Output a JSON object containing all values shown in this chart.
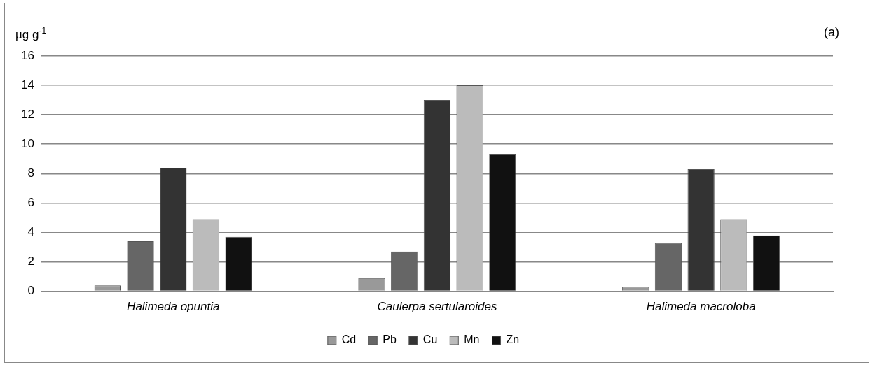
{
  "chart_data": {
    "type": "bar",
    "ylabel": "µg g$^{-1}$",
    "annotations": [
      "(a)"
    ],
    "categories": [
      "Halimeda opuntia",
      "Caulerpa sertularoides",
      "Halimeda macroloba"
    ],
    "series": [
      {
        "name": "Cd",
        "color": "#999999",
        "values": [
          0.4,
          0.9,
          0.3
        ]
      },
      {
        "name": "Pb",
        "color": "#666666",
        "values": [
          3.4,
          2.7,
          3.3
        ]
      },
      {
        "name": "Cu",
        "color": "#333333",
        "values": [
          8.4,
          13.0,
          8.3
        ]
      },
      {
        "name": "Mn",
        "color": "#bbbbbb",
        "values": [
          4.9,
          14.0,
          4.9
        ]
      },
      {
        "name": "Zn",
        "color": "#111111",
        "values": [
          3.7,
          9.3,
          3.8
        ]
      }
    ],
    "ylim": [
      0,
      16
    ],
    "yticks": [
      0,
      2,
      4,
      6,
      8,
      10,
      12,
      14,
      16
    ],
    "grid": "y",
    "legend": "bottom"
  }
}
